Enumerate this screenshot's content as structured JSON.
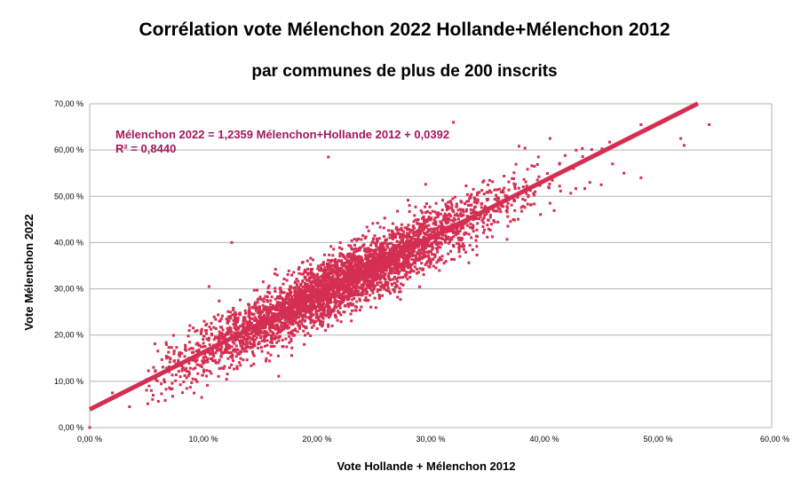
{
  "chart_data": {
    "type": "scatter",
    "title": "Corrélation vote Mélenchon 2022 Hollande+Mélenchon 2012",
    "subtitle": "par communes de plus de 200 inscrits",
    "xlabel": "Vote Hollande + Mélenchon 2012",
    "ylabel": "Vote Mélenchon 2022",
    "xlim": [
      0,
      60
    ],
    "ylim": [
      0,
      70
    ],
    "x_ticks": [
      "0,00 %",
      "10,00 %",
      "20,00 %",
      "30,00 %",
      "40,00 %",
      "50,00 %",
      "60,00 %"
    ],
    "y_ticks": [
      "0,00 %",
      "10,00 %",
      "20,00 %",
      "30,00 %",
      "40,00 %",
      "50,00 %",
      "60,00 %",
      "70,00 %"
    ],
    "grid": "horizontal",
    "trendline": {
      "slope": 1.2359,
      "intercept": 3.92,
      "x_range": [
        0,
        53.5
      ]
    },
    "annotation": {
      "equation": "Mélenchon 2022 = 1,2359 Mélenchon+Hollande 2012 + 0,0392",
      "r2": "R² = 0,8440"
    },
    "outliers": [
      {
        "x": 0.0,
        "y": 0.0
      },
      {
        "x": 3.5,
        "y": 4.5
      },
      {
        "x": 2.0,
        "y": 7.5
      },
      {
        "x": 54.5,
        "y": 65.5
      },
      {
        "x": 52.3,
        "y": 61.0
      },
      {
        "x": 52.0,
        "y": 62.5
      },
      {
        "x": 48.5,
        "y": 65.5
      },
      {
        "x": 48.5,
        "y": 54.0
      },
      {
        "x": 32.0,
        "y": 66.0
      },
      {
        "x": 44.0,
        "y": 53.0
      },
      {
        "x": 45.0,
        "y": 52.5
      },
      {
        "x": 47.0,
        "y": 55.0
      },
      {
        "x": 12.5,
        "y": 40.0
      },
      {
        "x": 10.5,
        "y": 30.5
      },
      {
        "x": 46.0,
        "y": 57.0
      },
      {
        "x": 40.5,
        "y": 62.5
      },
      {
        "x": 21.0,
        "y": 58.5
      },
      {
        "x": 40.5,
        "y": 48.5
      }
    ],
    "colors": {
      "points": "#d42e52",
      "trendline": "#d42e52",
      "annotation": "#a3185a",
      "grid": "#b3b3b3"
    }
  }
}
